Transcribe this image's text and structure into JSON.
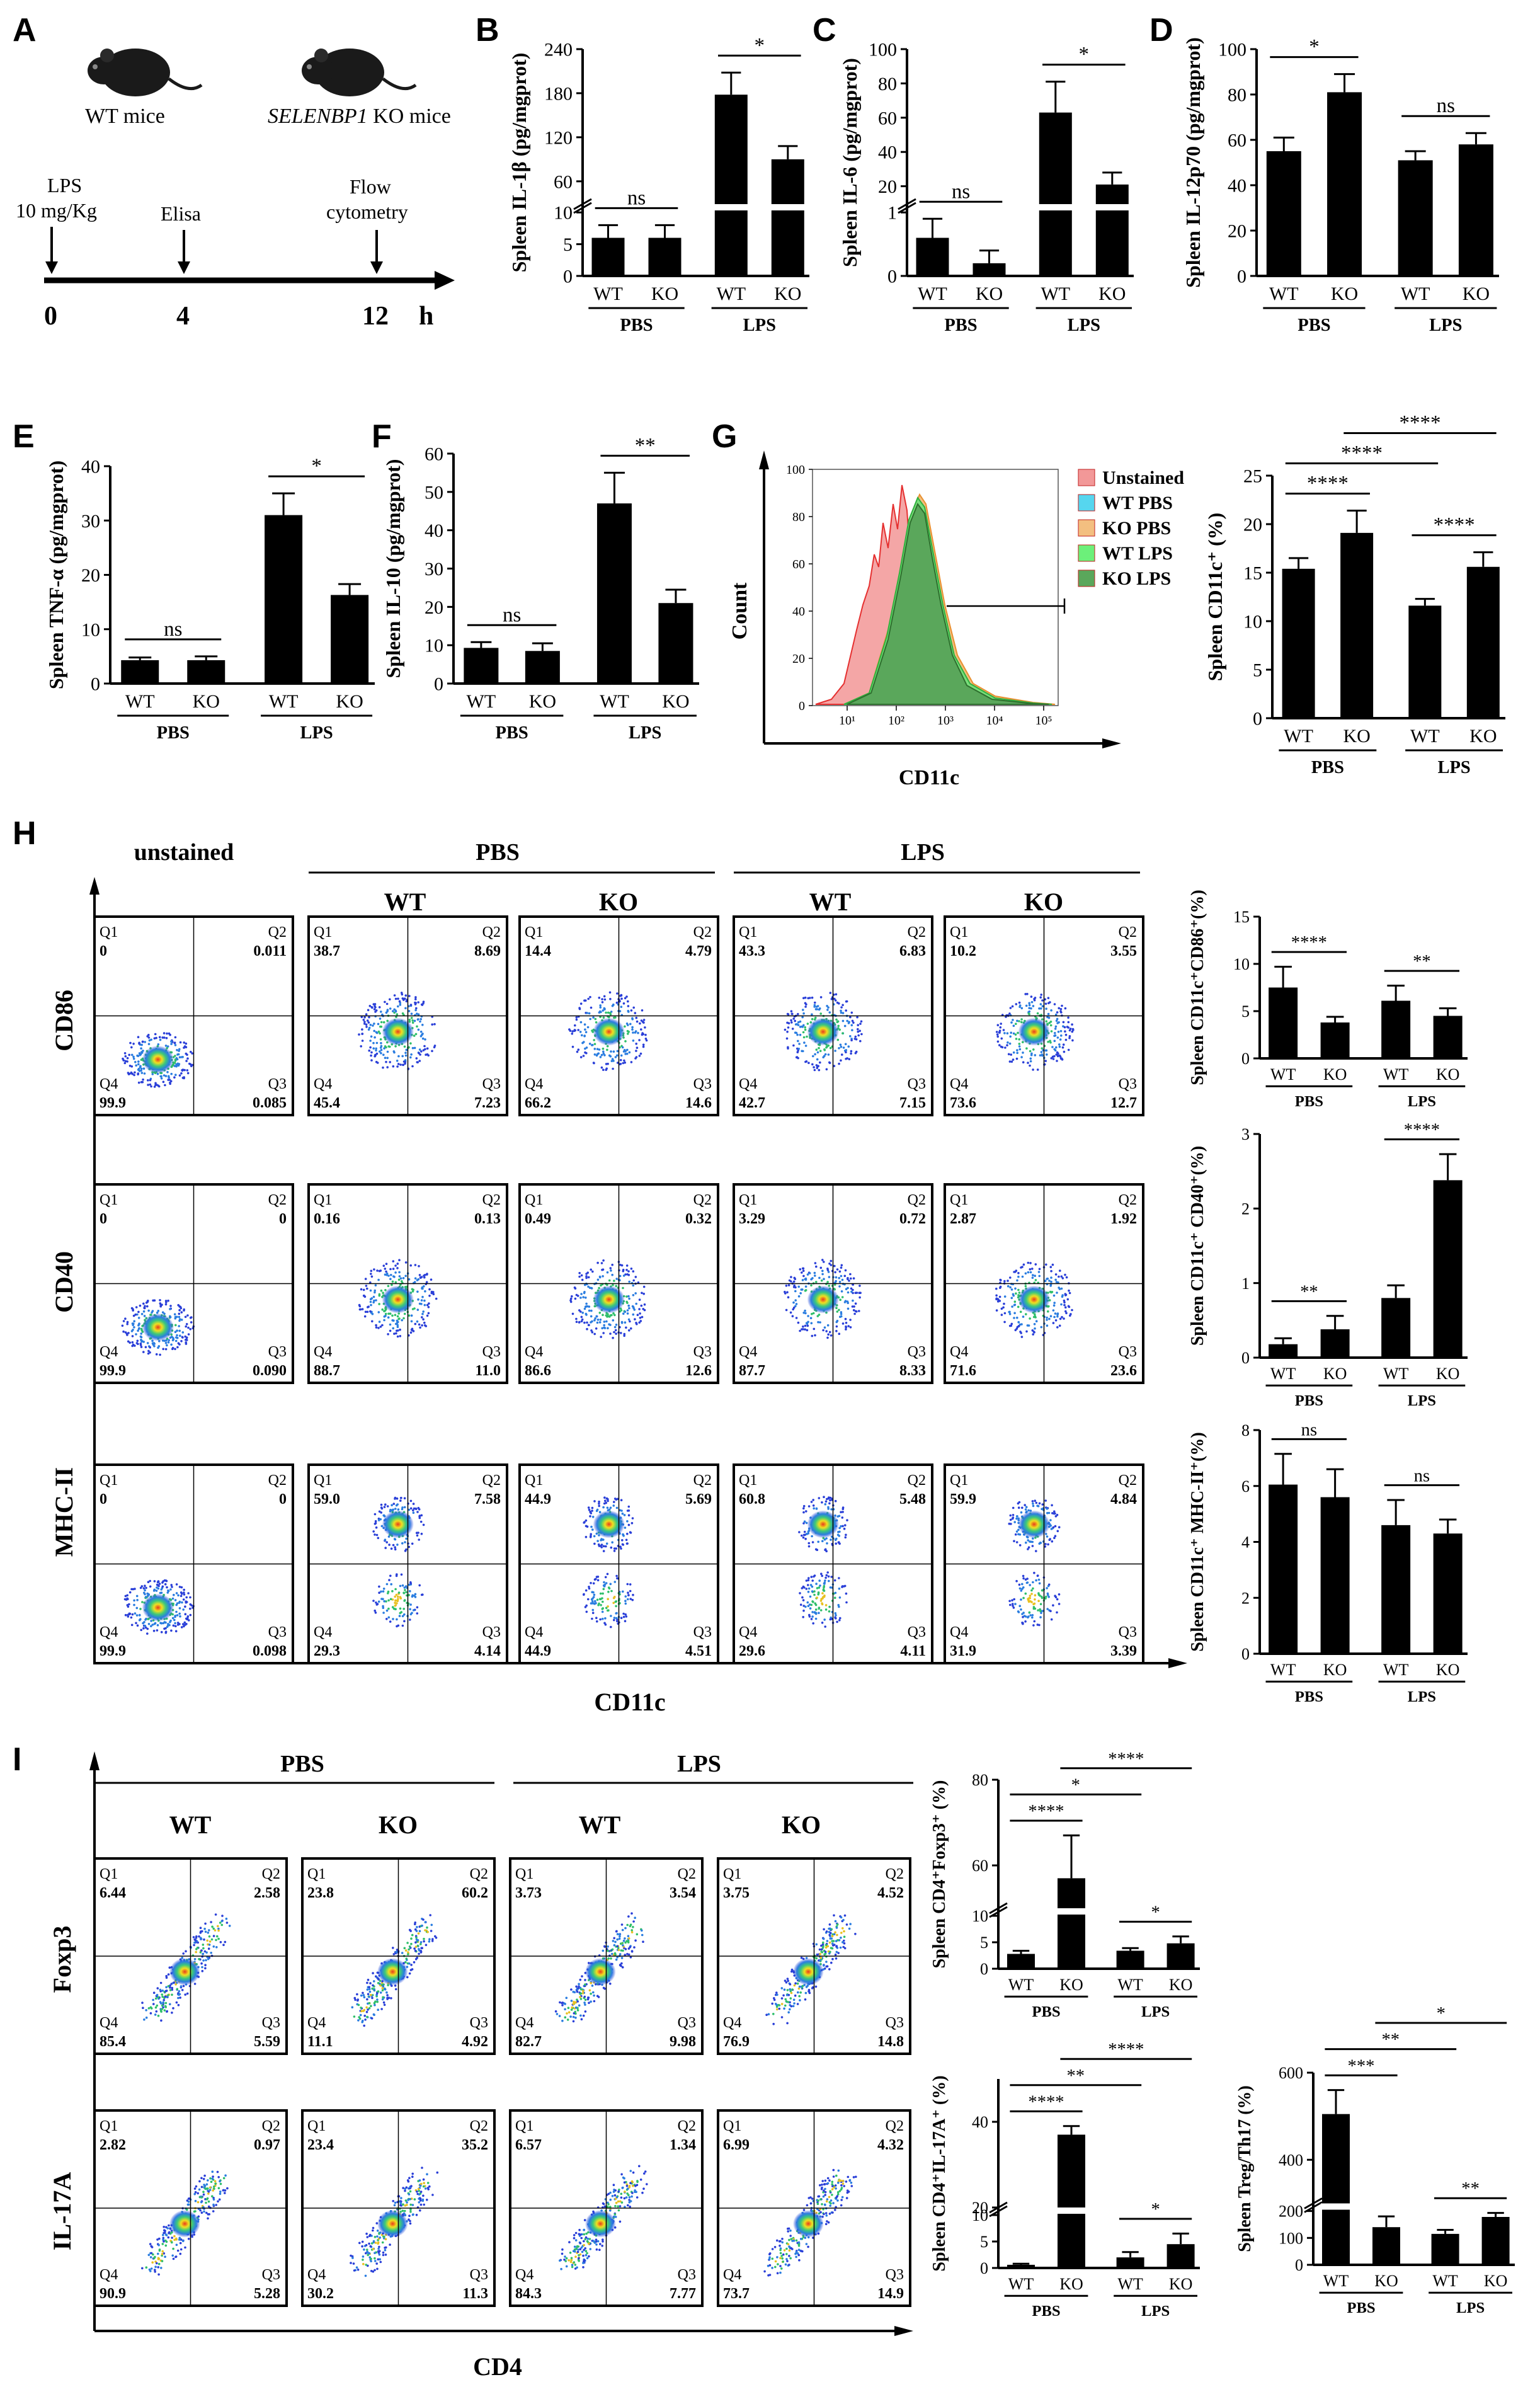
{
  "figure": {
    "panel_letters": [
      "A",
      "B",
      "C",
      "D",
      "E",
      "F",
      "G",
      "H",
      "I"
    ]
  },
  "panelA": {
    "wt_label": "WT mice",
    "ko_label_italic": "SELENBP1",
    "ko_label_rest": " KO mice",
    "events": [
      {
        "label1": "LPS",
        "label2": "10 mg/Kg",
        "time": "0"
      },
      {
        "label1": "Elisa",
        "label2": "",
        "time": "4"
      },
      {
        "label1": "Flow",
        "label2": "cytometry",
        "time": "12"
      }
    ],
    "unit": "h"
  },
  "groups": {
    "wt": "WT",
    "ko": "KO",
    "pbs": "PBS",
    "lps": "LPS"
  },
  "chart_data": [
    {
      "id": "B",
      "type": "bar",
      "ylabel": "Spleen IL-1β (pg/mgprot)",
      "categories": [
        "WT",
        "KO",
        "WT",
        "KO"
      ],
      "groups": [
        "PBS",
        "PBS",
        "LPS",
        "LPS"
      ],
      "values": [
        6,
        6,
        178,
        90
      ],
      "errors": [
        2,
        2,
        30,
        18
      ],
      "ylim": [
        0,
        240
      ],
      "broken_axis": [
        10,
        30
      ],
      "ticks": [
        "0",
        "5",
        "10",
        "60",
        "120",
        "180",
        "240"
      ],
      "significance": [
        {
          "pair": [
            0,
            1
          ],
          "label": "ns"
        },
        {
          "pair": [
            2,
            3
          ],
          "label": "*"
        }
      ]
    },
    {
      "id": "C",
      "type": "bar",
      "ylabel": "Spleen IL-6 (pg/mgprot)",
      "categories": [
        "WT",
        "KO",
        "WT",
        "KO"
      ],
      "groups": [
        "PBS",
        "PBS",
        "LPS",
        "LPS"
      ],
      "values": [
        0.6,
        0.2,
        63,
        21
      ],
      "errors": [
        0.3,
        0.2,
        18,
        7
      ],
      "ylim": [
        0,
        100
      ],
      "broken_axis": [
        1,
        10
      ],
      "ticks": [
        "0",
        "1",
        "20",
        "40",
        "60",
        "80",
        "100"
      ],
      "significance": [
        {
          "pair": [
            0,
            1
          ],
          "label": "ns"
        },
        {
          "pair": [
            2,
            3
          ],
          "label": "*"
        }
      ]
    },
    {
      "id": "D",
      "type": "bar",
      "ylabel": "Spleen IL-12p70 (pg/mgprot)",
      "categories": [
        "WT",
        "KO",
        "WT",
        "KO"
      ],
      "groups": [
        "PBS",
        "PBS",
        "LPS",
        "LPS"
      ],
      "values": [
        55,
        81,
        51,
        58
      ],
      "errors": [
        6,
        8,
        4,
        5
      ],
      "ylim": [
        0,
        100
      ],
      "ticks": [
        "0",
        "20",
        "40",
        "60",
        "80",
        "100"
      ],
      "significance": [
        {
          "pair": [
            0,
            1
          ],
          "label": "*"
        },
        {
          "pair": [
            2,
            3
          ],
          "label": "ns"
        }
      ]
    },
    {
      "id": "E",
      "type": "bar",
      "ylabel": "Spleen TNF-α (pg/mgprot)",
      "categories": [
        "WT",
        "KO",
        "WT",
        "KO"
      ],
      "groups": [
        "PBS",
        "PBS",
        "LPS",
        "LPS"
      ],
      "values": [
        4.3,
        4.3,
        31,
        16.3
      ],
      "errors": [
        0.5,
        0.7,
        4,
        2
      ],
      "ylim": [
        0,
        40
      ],
      "ticks": [
        "0",
        "10",
        "20",
        "30",
        "40"
      ],
      "significance": [
        {
          "pair": [
            0,
            1
          ],
          "label": "ns"
        },
        {
          "pair": [
            2,
            3
          ],
          "label": "*"
        }
      ]
    },
    {
      "id": "F",
      "type": "bar",
      "ylabel": "Spleen IL-10 (pg/mgprot)",
      "categories": [
        "WT",
        "KO",
        "WT",
        "KO"
      ],
      "groups": [
        "PBS",
        "PBS",
        "LPS",
        "LPS"
      ],
      "values": [
        9.3,
        8.5,
        47,
        21
      ],
      "errors": [
        1.5,
        2,
        8,
        3.5
      ],
      "ylim": [
        0,
        60
      ],
      "ticks": [
        "0",
        "10",
        "20",
        "30",
        "40",
        "50",
        "60"
      ],
      "significance": [
        {
          "pair": [
            0,
            1
          ],
          "label": "ns"
        },
        {
          "pair": [
            2,
            3
          ],
          "label": "**"
        }
      ]
    },
    {
      "id": "G",
      "type": "bar",
      "ylabel": "Spleen CD11c⁺ (%)",
      "categories": [
        "WT",
        "KO",
        "WT",
        "KO"
      ],
      "groups": [
        "PBS",
        "PBS",
        "LPS",
        "LPS"
      ],
      "values": [
        15.4,
        19.1,
        11.6,
        15.6
      ],
      "errors": [
        1.1,
        2.3,
        0.7,
        1.5
      ],
      "ylim": [
        0,
        25
      ],
      "ticks": [
        "0",
        "5",
        "10",
        "15",
        "20",
        "25"
      ],
      "significance": [
        {
          "pair": [
            0,
            1
          ],
          "label": "****"
        },
        {
          "pair": [
            0,
            2
          ],
          "label": "****"
        },
        {
          "pair": [
            1,
            3
          ],
          "label": "****"
        },
        {
          "pair": [
            2,
            3
          ],
          "label": "****"
        }
      ]
    },
    {
      "id": "H1",
      "type": "bar",
      "ylabel": "Spleen CD11c⁺CD86⁺(%)",
      "categories": [
        "WT",
        "KO",
        "WT",
        "KO"
      ],
      "groups": [
        "PBS",
        "PBS",
        "LPS",
        "LPS"
      ],
      "values": [
        7.5,
        3.8,
        6.1,
        4.5
      ],
      "errors": [
        2.2,
        0.6,
        1.6,
        0.8
      ],
      "ylim": [
        0,
        15
      ],
      "ticks": [
        "0",
        "5",
        "10",
        "15"
      ],
      "significance": [
        {
          "pair": [
            0,
            1
          ],
          "label": "****"
        },
        {
          "pair": [
            2,
            3
          ],
          "label": "**"
        }
      ]
    },
    {
      "id": "H2",
      "type": "bar",
      "ylabel": "Spleen CD11c⁺ CD40⁺(%)",
      "categories": [
        "WT",
        "KO",
        "WT",
        "KO"
      ],
      "groups": [
        "PBS",
        "PBS",
        "LPS",
        "LPS"
      ],
      "values": [
        0.18,
        0.38,
        0.8,
        2.38
      ],
      "errors": [
        0.08,
        0.18,
        0.17,
        0.35
      ],
      "ylim": [
        0,
        3
      ],
      "ticks": [
        "0",
        "1",
        "2",
        "3"
      ],
      "significance": [
        {
          "pair": [
            0,
            1
          ],
          "label": "**"
        },
        {
          "pair": [
            2,
            3
          ],
          "label": "****"
        }
      ]
    },
    {
      "id": "H3",
      "type": "bar",
      "ylabel": "Spleen CD11c⁺ MHC-II⁺(%)",
      "categories": [
        "WT",
        "KO",
        "WT",
        "KO"
      ],
      "groups": [
        "PBS",
        "PBS",
        "LPS",
        "LPS"
      ],
      "values": [
        6.05,
        5.6,
        4.6,
        4.3
      ],
      "errors": [
        1.1,
        1.0,
        0.9,
        0.5
      ],
      "ylim": [
        0,
        8
      ],
      "ticks": [
        "0",
        "2",
        "4",
        "6",
        "8"
      ],
      "significance": [
        {
          "pair": [
            0,
            1
          ],
          "label": "ns"
        },
        {
          "pair": [
            2,
            3
          ],
          "label": "ns"
        }
      ]
    },
    {
      "id": "I1",
      "type": "bar",
      "ylabel": "Spleen CD4⁺Foxp3⁺ (%)",
      "categories": [
        "WT",
        "KO",
        "WT",
        "KO"
      ],
      "groups": [
        "PBS",
        "PBS",
        "LPS",
        "LPS"
      ],
      "values": [
        2.8,
        57,
        3.4,
        4.8
      ],
      "errors": [
        0.6,
        10,
        0.5,
        1.3
      ],
      "ylim": [
        0,
        80
      ],
      "broken_axis": [
        10,
        50
      ],
      "ticks": [
        "0",
        "5",
        "10",
        "60",
        "80"
      ],
      "significance": [
        {
          "pair": [
            0,
            1
          ],
          "label": "****"
        },
        {
          "pair": [
            0,
            2
          ],
          "label": "*"
        },
        {
          "pair": [
            1,
            3
          ],
          "label": "****"
        },
        {
          "pair": [
            2,
            3
          ],
          "label": "*"
        }
      ]
    },
    {
      "id": "I2",
      "type": "bar",
      "ylabel": "Spleen CD4⁺IL-17A⁺ (%)",
      "categories": [
        "WT",
        "KO",
        "WT",
        "KO"
      ],
      "groups": [
        "PBS",
        "PBS",
        "LPS",
        "LPS"
      ],
      "values": [
        0.6,
        37,
        2,
        4.5
      ],
      "errors": [
        0.2,
        2,
        1,
        2
      ],
      "ylim": [
        0,
        50
      ],
      "broken_axis": [
        10,
        20
      ],
      "ticks": [
        "0",
        "5",
        "10",
        "20",
        "40"
      ],
      "significance": [
        {
          "pair": [
            0,
            1
          ],
          "label": "****"
        },
        {
          "pair": [
            0,
            2
          ],
          "label": "**"
        },
        {
          "pair": [
            1,
            3
          ],
          "label": "****"
        },
        {
          "pair": [
            2,
            3
          ],
          "label": "*"
        }
      ]
    },
    {
      "id": "I3",
      "type": "bar",
      "ylabel": "Spleen Treg/Th17 (%)",
      "categories": [
        "WT",
        "KO",
        "WT",
        "KO"
      ],
      "groups": [
        "PBS",
        "PBS",
        "LPS",
        "LPS"
      ],
      "values": [
        505,
        140,
        115,
        178
      ],
      "errors": [
        55,
        40,
        15,
        15
      ],
      "ylim": [
        0,
        600
      ],
      "broken_axis": [
        200,
        300
      ],
      "ticks": [
        "0",
        "100",
        "200",
        "400",
        "600"
      ],
      "significance": [
        {
          "pair": [
            0,
            1
          ],
          "label": "***"
        },
        {
          "pair": [
            0,
            2
          ],
          "label": "**"
        },
        {
          "pair": [
            1,
            3
          ],
          "label": "*"
        },
        {
          "pair": [
            2,
            3
          ],
          "label": "**"
        }
      ]
    }
  ],
  "histogram": {
    "xlabel": "CD11c",
    "ylabel": "Count",
    "yticks": [
      "0",
      "20",
      "40",
      "60",
      "80",
      "100"
    ],
    "xticks": [
      "10¹",
      "10²",
      "10³",
      "10⁴",
      "10⁵"
    ],
    "legend": [
      {
        "label": "Unstained",
        "color": "#f29898"
      },
      {
        "label": "WT PBS",
        "color": "#56d6ef"
      },
      {
        "label": "KO PBS",
        "color": "#f3bf80"
      },
      {
        "label": "WT LPS",
        "color": "#6cf07a"
      },
      {
        "label": "KO LPS",
        "color": "#5aa75b"
      }
    ]
  },
  "panelH": {
    "col_labels": [
      "unstained",
      "WT",
      "KO",
      "WT",
      "KO"
    ],
    "group_labels": [
      "PBS",
      "LPS"
    ],
    "row_labels": [
      "CD86",
      "CD40",
      "MHC-II"
    ],
    "xlabel": "CD11c",
    "plots": [
      [
        [
          "Q1",
          "0",
          "Q2",
          "0.011",
          "Q4",
          "99.9",
          "Q3",
          "0.085"
        ],
        [
          "Q1",
          "38.7",
          "Q2",
          "8.69",
          "Q4",
          "45.4",
          "Q3",
          "7.23"
        ],
        [
          "Q1",
          "14.4",
          "Q2",
          "4.79",
          "Q4",
          "66.2",
          "Q3",
          "14.6"
        ],
        [
          "Q1",
          "43.3",
          "Q2",
          "6.83",
          "Q4",
          "42.7",
          "Q3",
          "7.15"
        ],
        [
          "Q1",
          "10.2",
          "Q2",
          "3.55",
          "Q4",
          "73.6",
          "Q3",
          "12.7"
        ]
      ],
      [
        [
          "Q1",
          "0",
          "Q2",
          "0",
          "Q4",
          "99.9",
          "Q3",
          "0.090"
        ],
        [
          "Q1",
          "0.16",
          "Q2",
          "0.13",
          "Q4",
          "88.7",
          "Q3",
          "11.0"
        ],
        [
          "Q1",
          "0.49",
          "Q2",
          "0.32",
          "Q4",
          "86.6",
          "Q3",
          "12.6"
        ],
        [
          "Q1",
          "3.29",
          "Q2",
          "0.72",
          "Q4",
          "87.7",
          "Q3",
          "8.33"
        ],
        [
          "Q1",
          "2.87",
          "Q2",
          "1.92",
          "Q4",
          "71.6",
          "Q3",
          "23.6"
        ]
      ],
      [
        [
          "Q1",
          "0",
          "Q2",
          "0",
          "Q4",
          "99.9",
          "Q3",
          "0.098"
        ],
        [
          "Q1",
          "59.0",
          "Q2",
          "7.58",
          "Q4",
          "29.3",
          "Q3",
          "4.14"
        ],
        [
          "Q1",
          "44.9",
          "Q2",
          "5.69",
          "Q4",
          "44.9",
          "Q3",
          "4.51"
        ],
        [
          "Q1",
          "60.8",
          "Q2",
          "5.48",
          "Q4",
          "29.6",
          "Q3",
          "4.11"
        ],
        [
          "Q1",
          "59.9",
          "Q2",
          "4.84",
          "Q4",
          "31.9",
          "Q3",
          "3.39"
        ]
      ]
    ]
  },
  "panelI": {
    "col_labels": [
      "WT",
      "KO",
      "WT",
      "KO"
    ],
    "group_labels": [
      "PBS",
      "LPS"
    ],
    "row_labels": [
      "Foxp3",
      "IL-17A"
    ],
    "xlabel": "CD4",
    "plots": [
      [
        [
          "Q1",
          "6.44",
          "Q2",
          "2.58",
          "Q4",
          "85.4",
          "Q3",
          "5.59"
        ],
        [
          "Q1",
          "23.8",
          "Q2",
          "60.2",
          "Q4",
          "11.1",
          "Q3",
          "4.92"
        ],
        [
          "Q1",
          "3.73",
          "Q2",
          "3.54",
          "Q4",
          "82.7",
          "Q3",
          "9.98"
        ],
        [
          "Q1",
          "3.75",
          "Q2",
          "4.52",
          "Q4",
          "76.9",
          "Q3",
          "14.8"
        ]
      ],
      [
        [
          "Q1",
          "2.82",
          "Q2",
          "0.97",
          "Q4",
          "90.9",
          "Q3",
          "5.28"
        ],
        [
          "Q1",
          "23.4",
          "Q2",
          "35.2",
          "Q4",
          "30.2",
          "Q3",
          "11.3"
        ],
        [
          "Q1",
          "6.57",
          "Q2",
          "1.34",
          "Q4",
          "84.3",
          "Q3",
          "7.77"
        ],
        [
          "Q1",
          "6.99",
          "Q2",
          "4.32",
          "Q4",
          "73.7",
          "Q3",
          "14.9"
        ]
      ]
    ]
  }
}
